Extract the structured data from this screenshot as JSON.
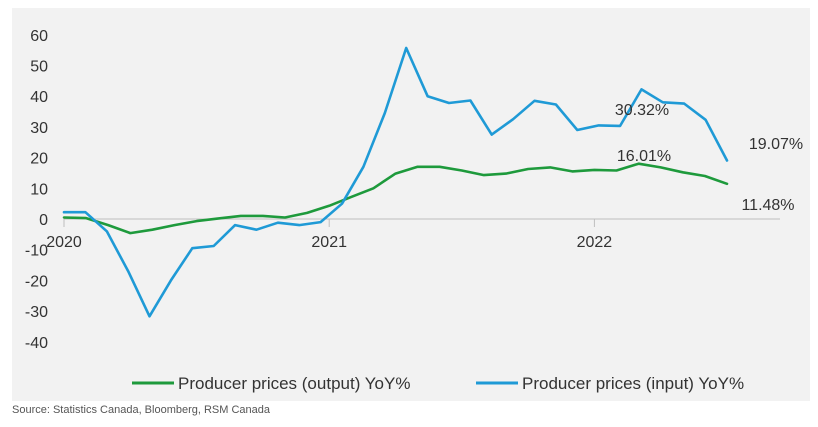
{
  "chart_data": {
    "type": "line",
    "y_ticks": [
      60,
      50,
      40,
      30,
      20,
      10,
      0,
      -10,
      -20,
      -30,
      -40
    ],
    "ylim": [
      -40,
      60
    ],
    "x_ticks": [
      "2020",
      "2021",
      "2022"
    ],
    "grid": false,
    "legend_position": "bottom",
    "series": [
      {
        "name": "Producer prices (output) YoY%",
        "color": "#1e9a3c",
        "values": [
          0.5,
          0.3,
          -2.0,
          -4.6,
          -3.5,
          -2.0,
          -0.7,
          0.2,
          1.0,
          1.0,
          0.5,
          2.0,
          4.3,
          7.2,
          10.0,
          14.8,
          17.0,
          17.0,
          15.8,
          14.3,
          14.8,
          16.3,
          16.8,
          15.5,
          16.0,
          15.8,
          18.0,
          16.8,
          15.2,
          14.0,
          11.48
        ]
      },
      {
        "name": "Producer prices (input) YoY%",
        "color": "#1f9ad6",
        "values": [
          2.2,
          2.2,
          -4.0,
          -17.0,
          -31.7,
          -20.0,
          -9.5,
          -8.8,
          -2.0,
          -3.5,
          -1.2,
          -2.0,
          -1.0,
          5.0,
          17.0,
          34.5,
          55.7,
          40.0,
          37.8,
          38.6,
          27.5,
          32.5,
          38.5,
          37.3,
          29.0,
          30.5,
          30.32,
          42.2,
          38.0,
          37.6,
          32.3,
          19.07
        ]
      }
    ],
    "annotations": [
      "30.32%",
      "16.01%",
      "19.07%",
      "11.48%"
    ]
  },
  "source": "Source: Statistics Canada, Bloomberg, RSM Canada"
}
